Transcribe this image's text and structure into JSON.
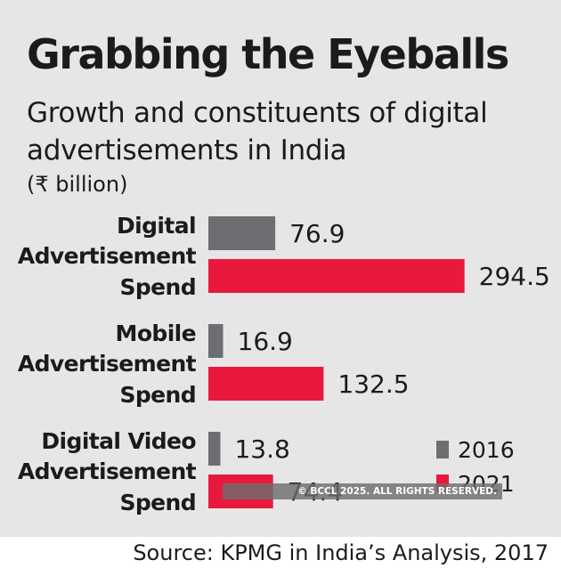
{
  "chart_data": {
    "type": "bar",
    "orientation": "horizontal",
    "title": "Grabbing the Eyeballs",
    "subtitle": "Growth and constituents of digital advertisements in India",
    "unit": "(₹ billion)",
    "categories": [
      [
        "Digital",
        "Advertisement",
        "Spend"
      ],
      [
        "Mobile",
        "Advertisement",
        "Spend"
      ],
      [
        "Digital Video",
        "Advertisement",
        "Spend"
      ]
    ],
    "series": [
      {
        "name": "2016",
        "color": "#6d6e71",
        "values": [
          76.9,
          16.9,
          13.8
        ]
      },
      {
        "name": "2021",
        "color": "#e8193c",
        "values": [
          294.5,
          132.5,
          74.4
        ]
      }
    ],
    "xlim": [
      0,
      300
    ],
    "grid": false,
    "legend_position": "bottom-right"
  },
  "watermark": "© BCCL 2025. ALL RIGHTS RESERVED.",
  "source": "Source: KPMG in India’s Analysis, 2017"
}
